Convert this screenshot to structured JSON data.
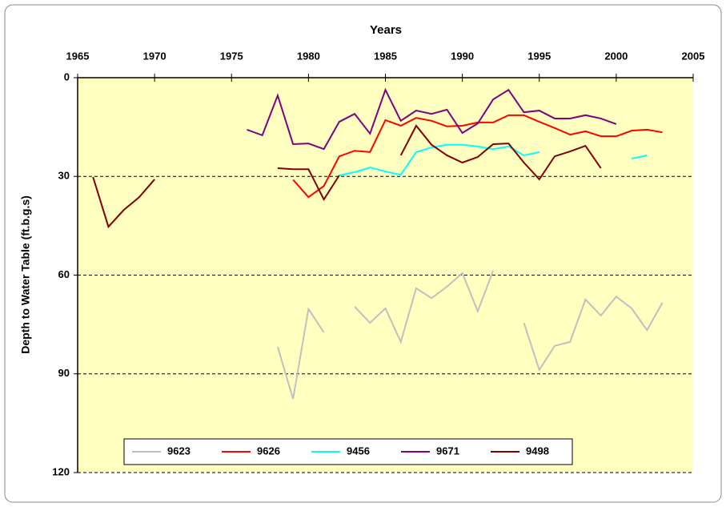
{
  "chart_data": {
    "type": "line",
    "x_axis_label": "Years",
    "y_axis_label": "Depth to Water Table (ft.b.g.s)",
    "x": [
      1966,
      1967,
      1968,
      1969,
      1970,
      1971,
      1972,
      1973,
      1974,
      1975,
      1976,
      1977,
      1978,
      1979,
      1980,
      1981,
      1982,
      1983,
      1984,
      1985,
      1986,
      1987,
      1988,
      1989,
      1990,
      1991,
      1992,
      1993,
      1994,
      1995,
      1996,
      1997,
      1998,
      1999,
      2000,
      2001,
      2002,
      2003
    ],
    "series": [
      {
        "name": "9623",
        "color": "#c0c0c0",
        "values": [
          null,
          null,
          null,
          null,
          null,
          null,
          null,
          null,
          null,
          null,
          null,
          null,
          81.8,
          97.6,
          70.3,
          77.4,
          null,
          69.6,
          74.5,
          70.1,
          80.3,
          64,
          67,
          63.5,
          59.4,
          71,
          58.7,
          null,
          74.5,
          88.8,
          81.5,
          80.3,
          67.4,
          72.3,
          66.5,
          70.1,
          76.7,
          68.4
        ]
      },
      {
        "name": "9626",
        "color": "#ff0000",
        "values": [
          null,
          null,
          null,
          null,
          null,
          null,
          null,
          null,
          null,
          null,
          null,
          null,
          null,
          31,
          36.3,
          32.9,
          23.9,
          22.2,
          22.6,
          12.9,
          14.6,
          12.2,
          13.1,
          14.8,
          14.6,
          13.6,
          13.6,
          11.4,
          11.4,
          13.4,
          15.3,
          17.3,
          16.3,
          17.8,
          17.8,
          16.1,
          15.8,
          16.6
        ]
      },
      {
        "name": "9456",
        "color": "#00ffff",
        "values": [
          null,
          null,
          null,
          null,
          null,
          null,
          null,
          null,
          null,
          null,
          null,
          null,
          null,
          null,
          null,
          null,
          29.7,
          28.7,
          27.3,
          28.5,
          29.5,
          22.6,
          21.2,
          20.4,
          20.4,
          20.9,
          21.7,
          20.9,
          23.6,
          22.6,
          null,
          null,
          null,
          null,
          null,
          24.6,
          23.6,
          null
        ]
      },
      {
        "name": "9671",
        "color": "#800080",
        "values": [
          null,
          null,
          null,
          null,
          null,
          null,
          null,
          null,
          null,
          null,
          15.8,
          17.5,
          5.4,
          20.2,
          20,
          21.7,
          13.4,
          11,
          17,
          3.7,
          13.1,
          10,
          11,
          9.7,
          16.8,
          13.9,
          6.6,
          3.7,
          10.5,
          10,
          12.4,
          12.4,
          11.4,
          12.4,
          14.1,
          null,
          null,
          null
        ]
      },
      {
        "name": "9498",
        "color": "#800000",
        "values": [
          30.2,
          45.3,
          40.2,
          36.3,
          30.9,
          null,
          null,
          null,
          null,
          null,
          null,
          null,
          27.5,
          27.8,
          27.8,
          37,
          29.7,
          null,
          null,
          null,
          23.6,
          14.6,
          20.4,
          23.6,
          25.8,
          24.1,
          20.2,
          20,
          25.8,
          30.9,
          23.9,
          22.4,
          20.7,
          27.5,
          null,
          null,
          null,
          null
        ]
      }
    ],
    "xlim": [
      1965,
      2005
    ],
    "xticks": [
      1965,
      1970,
      1975,
      1980,
      1985,
      1990,
      1995,
      2000,
      2005
    ],
    "x_axis_position": "top",
    "ylim": [
      0,
      120
    ],
    "yticks": [
      0,
      30,
      60,
      90,
      120
    ],
    "y_inverted": true,
    "grid": true,
    "legend_position": "bottom"
  }
}
